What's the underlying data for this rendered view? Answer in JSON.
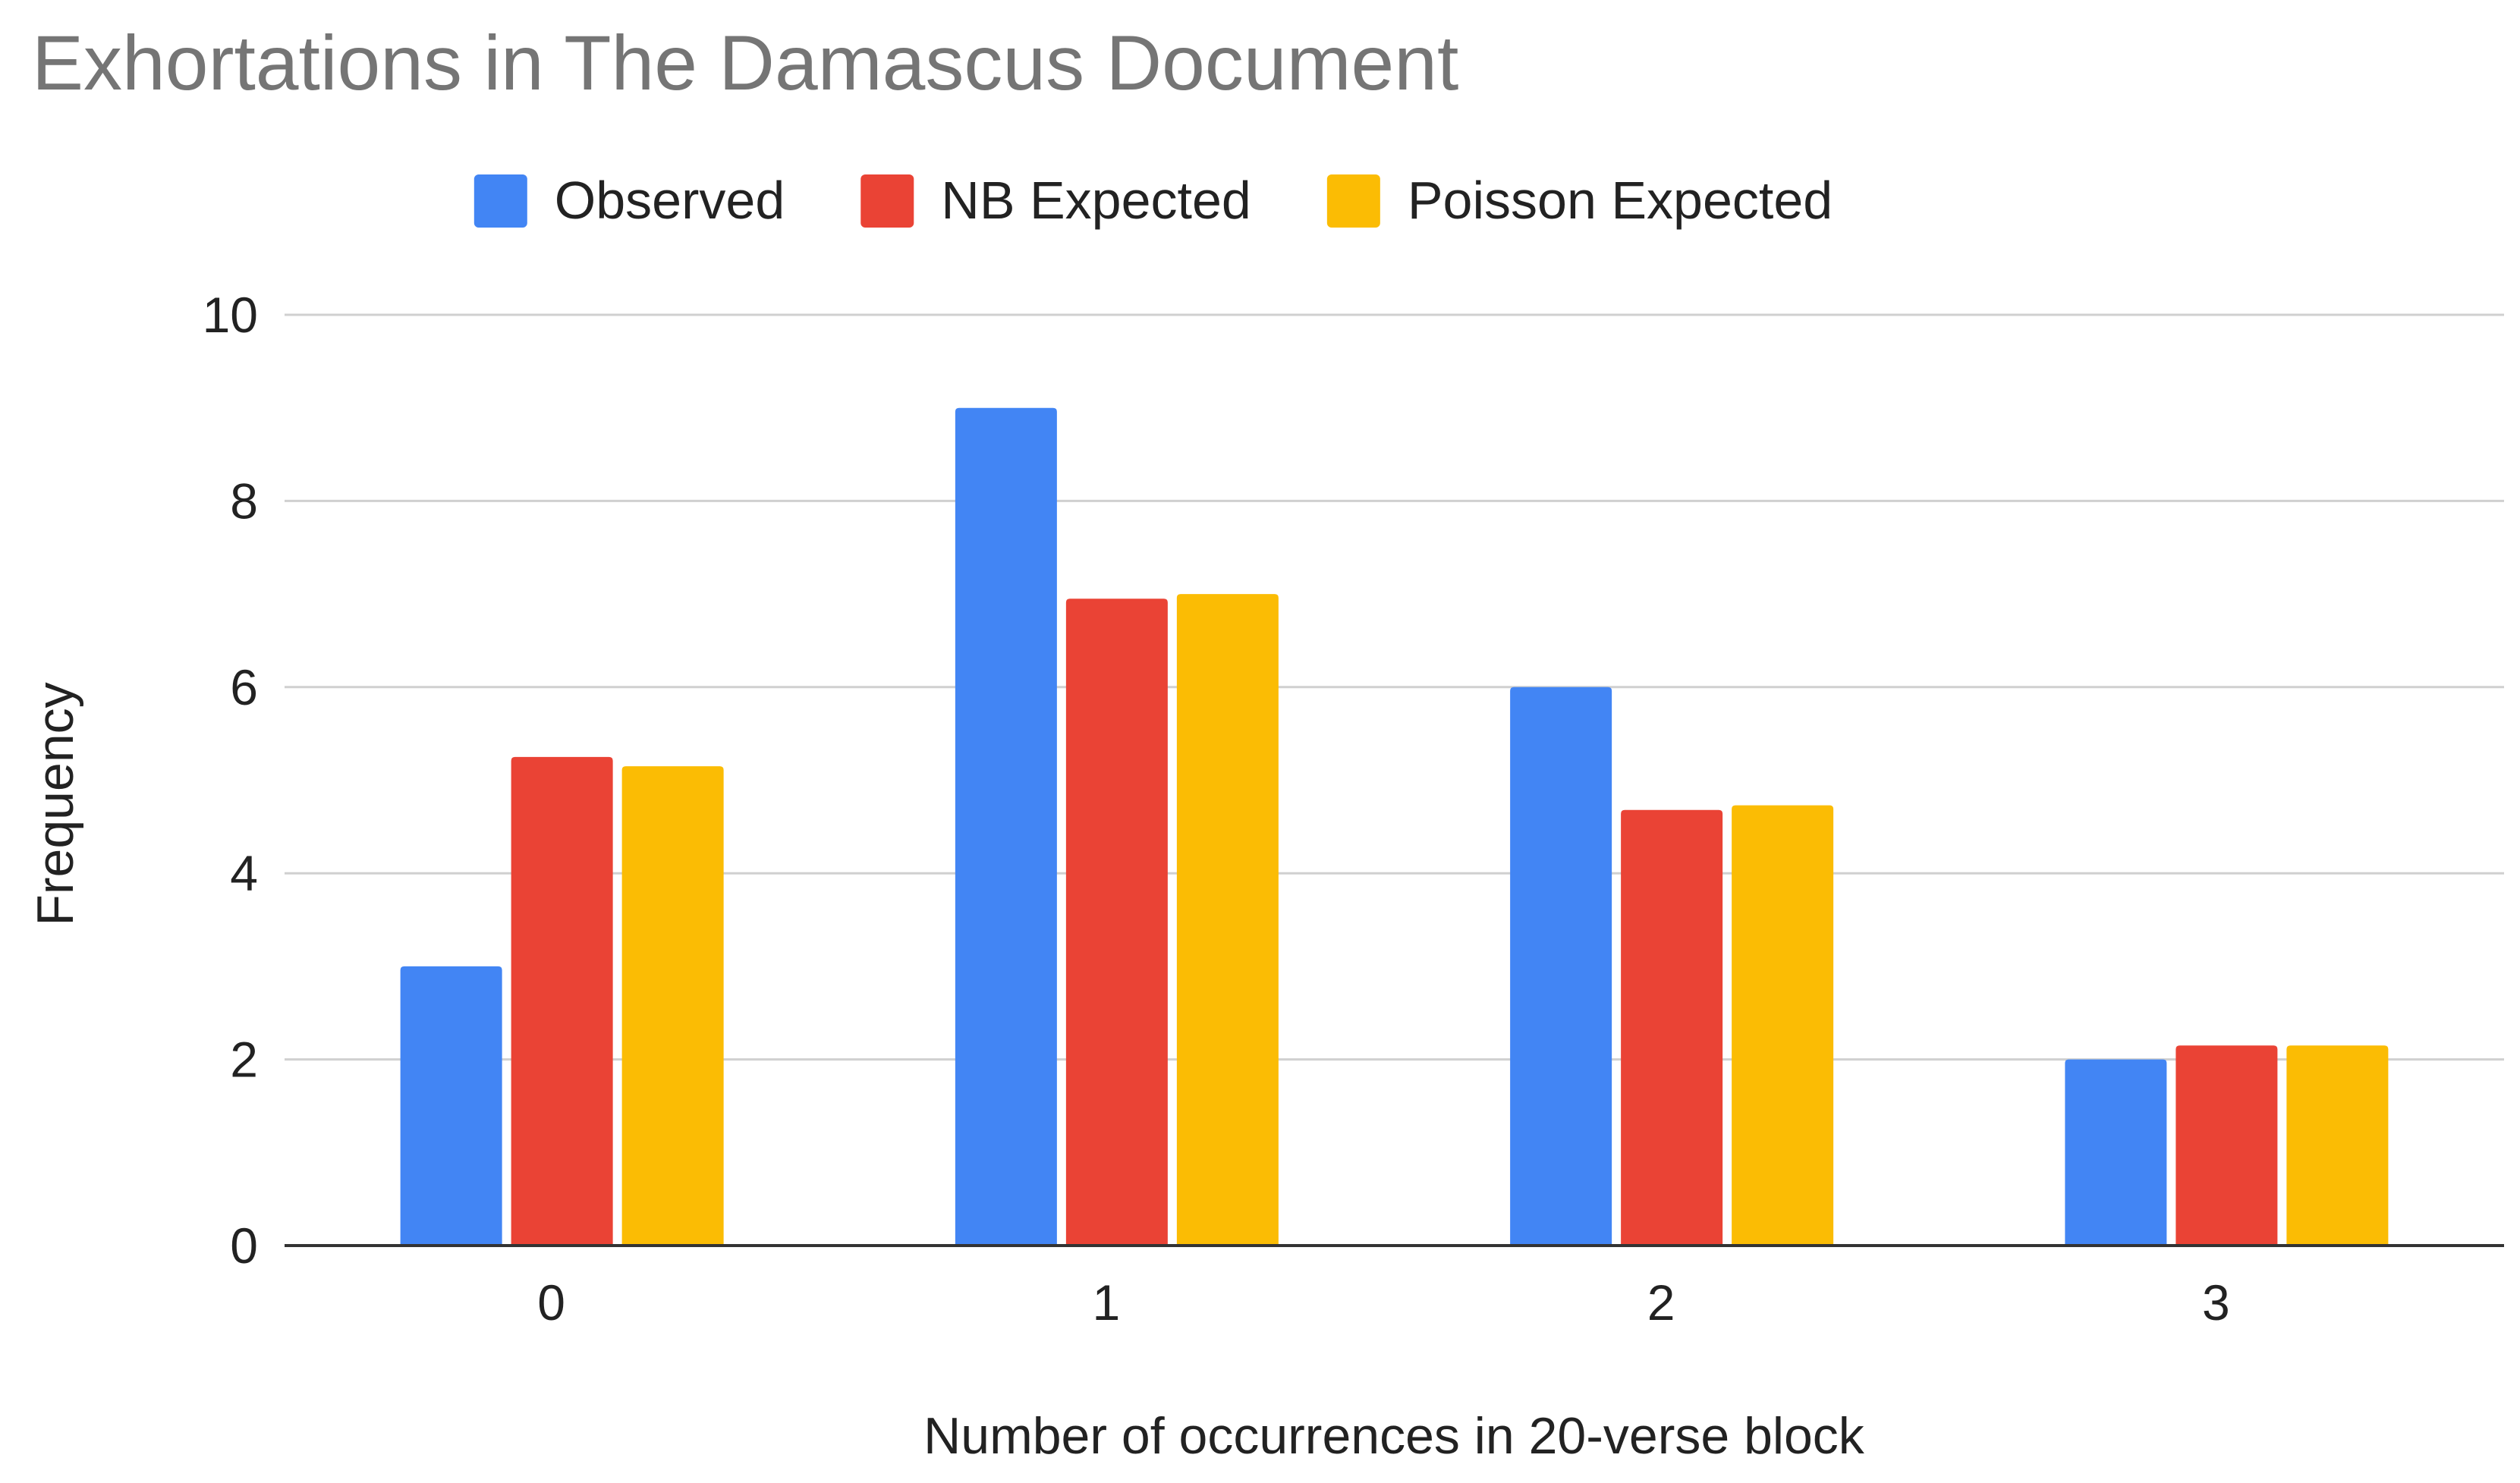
{
  "chart_data": {
    "type": "bar",
    "title": "Exhortations in The Damascus Document",
    "xlabel": "Number of occurrences in 20-verse block",
    "ylabel": "Frequency",
    "categories": [
      "0",
      "1",
      "2",
      "3"
    ],
    "series": [
      {
        "name": "Observed",
        "color": "#4285F4",
        "values": [
          3,
          9,
          6,
          2
        ]
      },
      {
        "name": "NB Expected",
        "color": "#EA4335",
        "values": [
          5.25,
          6.95,
          4.68,
          2.15
        ]
      },
      {
        "name": "Poisson Expected",
        "color": "#FBBC04",
        "values": [
          5.15,
          7.0,
          4.73,
          2.15
        ]
      }
    ],
    "ylim": [
      0,
      10
    ],
    "yticks": [
      0,
      2,
      4,
      6,
      8,
      10
    ],
    "grid": true,
    "legend_position": "top"
  }
}
